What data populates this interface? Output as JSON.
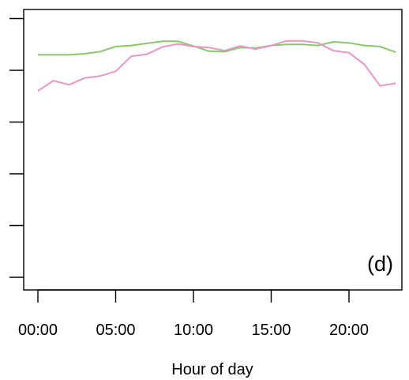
{
  "chart_data": {
    "type": "line",
    "title": "",
    "panel_label": "(d)",
    "xlabel": "Hour of day",
    "ylabel": "",
    "x": [
      0,
      1,
      2,
      3,
      4,
      5,
      6,
      7,
      8,
      9,
      10,
      11,
      12,
      13,
      14,
      15,
      16,
      17,
      18,
      19,
      20,
      21,
      22,
      23
    ],
    "x_ticks": [
      0,
      5,
      10,
      15,
      20
    ],
    "x_tick_labels": [
      "00:00",
      "05:00",
      "10:00",
      "15:00",
      "20:00"
    ],
    "xlim": [
      -1,
      24
    ],
    "ylim": [
      0,
      5.2
    ],
    "y_ticks": [
      0,
      1,
      2,
      3,
      4,
      5
    ],
    "y_tick_labels": [
      "",
      "",
      "",
      "",
      "",
      ""
    ],
    "series": [
      {
        "color": "#88c86a",
        "values": [
          4.3,
          4.3,
          4.3,
          4.32,
          4.36,
          4.46,
          4.48,
          4.52,
          4.56,
          4.56,
          4.47,
          4.37,
          4.36,
          4.44,
          4.43,
          4.48,
          4.5,
          4.5,
          4.48,
          4.55,
          4.53,
          4.48,
          4.46,
          4.35
        ]
      },
      {
        "color": "#e696c8",
        "values": [
          3.6,
          3.8,
          3.72,
          3.85,
          3.89,
          3.98,
          4.27,
          4.31,
          4.45,
          4.51,
          4.46,
          4.44,
          4.38,
          4.47,
          4.41,
          4.48,
          4.57,
          4.57,
          4.53,
          4.38,
          4.34,
          4.11,
          3.7,
          3.75
        ]
      }
    ],
    "grid": false,
    "legend": "none"
  }
}
